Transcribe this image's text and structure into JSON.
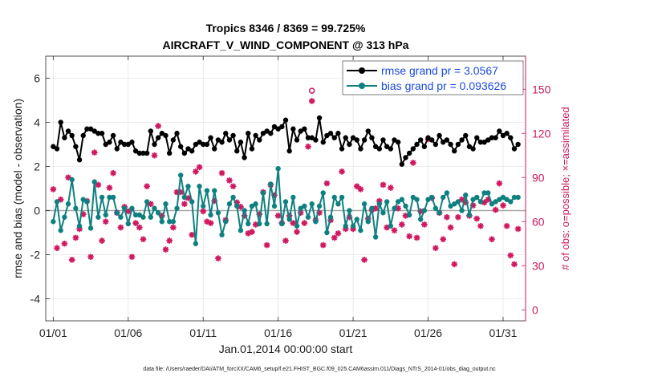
{
  "chart_data": {
    "type": "line",
    "title_line1": "Tropics 8346 / 8369 = 99.725%",
    "title_line2": "AIRCRAFT_V_WIND_COMPONENT @ 313 hPa",
    "xlabel": "Jan.01,2014 00:00:00 start",
    "ylabel_left": "rmse and bias (model - observation)",
    "ylabel_right": "# of obs: o=possible; ×=assimilated",
    "footnote": "data file: /Users/raeder/DAI/ATM_forcXX/CAM6_setup/f.e21.FHIST_BGC.f09_025.CAM6assim.011/Diags_NTrS_2014-01/obs_diag_output.nc",
    "xlim": [
      0.5,
      32.5
    ],
    "ylim_left": [
      -5,
      7
    ],
    "ylim_right": [
      -7.5,
      172.5
    ],
    "x_ticks": [
      1,
      6,
      11,
      16,
      21,
      26,
      31
    ],
    "x_tick_labels": [
      "01/01",
      "01/06",
      "01/11",
      "01/16",
      "01/21",
      "01/26",
      "01/31"
    ],
    "y_left_ticks": [
      -4,
      -2,
      0,
      2,
      4,
      6
    ],
    "y_left_tick_labels": [
      "-4",
      "-2",
      "0",
      "2",
      "4",
      "6"
    ],
    "y_right_ticks": [
      0,
      30,
      60,
      90,
      120,
      150
    ],
    "y_right_tick_labels": [
      "0",
      "30",
      "60",
      "90",
      "120",
      "150"
    ],
    "grid": true,
    "legend_position": "top-right",
    "colors": {
      "rmse": "#000000",
      "bias": "#0f8080",
      "obs": "#d01860",
      "right_axis": "#c81860",
      "legend_text": "#1a4adc",
      "grid": "#dcdcdc",
      "zero_line": "#a8a8a8"
    },
    "series": [
      {
        "name": "rmse grand pr = 3.0567",
        "axis": "left",
        "marker": "filled-circle",
        "x": [
          1.0,
          1.25,
          1.5,
          1.75,
          2.0,
          2.25,
          2.5,
          2.75,
          3.0,
          3.25,
          3.5,
          3.75,
          4.0,
          4.25,
          4.5,
          4.75,
          5.0,
          5.25,
          5.5,
          5.75,
          6.0,
          6.25,
          6.5,
          6.75,
          7.0,
          7.25,
          7.5,
          7.75,
          8.0,
          8.25,
          8.5,
          8.75,
          9.0,
          9.25,
          9.5,
          9.75,
          10.0,
          10.25,
          10.5,
          10.75,
          11.0,
          11.25,
          11.5,
          11.75,
          12.0,
          12.25,
          12.5,
          12.75,
          13.0,
          13.25,
          13.5,
          13.75,
          14.0,
          14.25,
          14.5,
          14.75,
          15.0,
          15.25,
          15.5,
          15.75,
          16.0,
          16.25,
          16.5,
          16.75,
          17.0,
          17.25,
          17.5,
          17.75,
          18.0,
          18.25,
          18.5,
          18.75,
          19.0,
          19.25,
          19.5,
          19.75,
          20.0,
          20.25,
          20.5,
          20.75,
          21.0,
          21.25,
          21.5,
          21.75,
          22.0,
          22.25,
          22.5,
          22.75,
          23.0,
          23.25,
          23.5,
          23.75,
          24.0,
          24.25,
          24.5,
          24.75,
          25.0,
          25.25,
          25.5,
          25.75,
          26.0,
          26.25,
          26.5,
          26.75,
          27.0,
          27.25,
          27.5,
          27.75,
          28.0,
          28.25,
          28.5,
          28.75,
          29.0,
          29.25,
          29.5,
          29.75,
          30.0,
          30.25,
          30.5,
          30.75,
          31.0,
          31.25,
          31.5,
          31.75,
          32.0
        ],
        "values": [
          2.9,
          2.8,
          4.0,
          3.3,
          3.6,
          3.4,
          2.9,
          2.3,
          3.4,
          3.7,
          3.7,
          3.6,
          3.5,
          3.5,
          3.0,
          3.1,
          3.4,
          2.8,
          3.1,
          3.0,
          3.0,
          3.1,
          2.7,
          2.6,
          2.6,
          2.6,
          3.6,
          3.0,
          3.3,
          3.5,
          3.4,
          2.6,
          3.2,
          3.5,
          2.9,
          2.6,
          2.8,
          2.7,
          3.0,
          3.1,
          3.0,
          3.0,
          3.3,
          2.8,
          3.2,
          3.1,
          3.5,
          3.2,
          3.4,
          2.7,
          3.1,
          2.4,
          3.5,
          2.8,
          3.4,
          3.2,
          3.5,
          3.6,
          3.5,
          3.8,
          3.7,
          3.8,
          4.1,
          2.7,
          3.7,
          3.2,
          3.6,
          3.7,
          3.3,
          3.3,
          3.2,
          4.2,
          3.1,
          3.4,
          3.5,
          3.3,
          3.5,
          2.8,
          3.3,
          3.0,
          3.3,
          3.2,
          2.8,
          3.2,
          3.6,
          3.3,
          2.9,
          2.8,
          3.2,
          2.9,
          2.8,
          3.2,
          3.1,
          2.1,
          2.4,
          2.6,
          2.8,
          3.0,
          3.2,
          2.9,
          3.3,
          3.2,
          3.0,
          3.4,
          3.1,
          3.2,
          3.0,
          2.7,
          3.0,
          3.2,
          3.4,
          2.9,
          2.8,
          3.3,
          3.1,
          3.1,
          3.2,
          3.3,
          3.3,
          3.6,
          3.4,
          3.5,
          3.3,
          2.8,
          3.0
        ]
      },
      {
        "name": "bias grand pr = 0.093626",
        "axis": "left",
        "marker": "filled-circle",
        "x": [
          1.0,
          1.25,
          1.5,
          1.75,
          2.0,
          2.25,
          2.5,
          2.75,
          3.0,
          3.25,
          3.5,
          3.75,
          4.0,
          4.25,
          4.5,
          4.75,
          5.0,
          5.25,
          5.5,
          5.75,
          6.0,
          6.25,
          6.5,
          6.75,
          7.0,
          7.25,
          7.5,
          7.75,
          8.0,
          8.25,
          8.5,
          8.75,
          9.0,
          9.25,
          9.5,
          9.75,
          10.0,
          10.25,
          10.5,
          10.75,
          11.0,
          11.25,
          11.5,
          11.75,
          12.0,
          12.25,
          12.5,
          12.75,
          13.0,
          13.25,
          13.5,
          13.75,
          14.0,
          14.25,
          14.5,
          14.75,
          15.0,
          15.25,
          15.5,
          15.75,
          16.0,
          16.25,
          16.5,
          16.75,
          17.0,
          17.25,
          17.5,
          17.75,
          18.0,
          18.25,
          18.5,
          18.75,
          19.0,
          19.25,
          19.5,
          19.75,
          20.0,
          20.25,
          20.5,
          20.75,
          21.0,
          21.25,
          21.5,
          21.75,
          22.0,
          22.25,
          22.5,
          22.75,
          23.0,
          23.25,
          23.5,
          23.75,
          24.0,
          24.25,
          24.5,
          24.75,
          25.0,
          25.25,
          25.5,
          25.75,
          26.0,
          26.25,
          26.5,
          26.75,
          27.0,
          27.25,
          27.5,
          27.75,
          28.0,
          28.25,
          28.5,
          28.75,
          29.0,
          29.25,
          29.5,
          29.75,
          30.0,
          30.25,
          30.5,
          30.75,
          31.0,
          31.25,
          31.5,
          31.75,
          32.0
        ],
        "values": [
          -0.5,
          0.4,
          -0.9,
          -0.3,
          0.3,
          1.4,
          0.1,
          -0.7,
          0.5,
          0.4,
          -0.8,
          1.3,
          -0.3,
          0.6,
          -0.2,
          0.6,
          0.6,
          -0.1,
          -0.3,
          0.1,
          -0.6,
          0.1,
          -0.2,
          -0.2,
          -0.3,
          0.4,
          -0.3,
          0.1,
          -0.1,
          -0.5,
          0.3,
          -0.5,
          -0.5,
          0.1,
          1.6,
          0.6,
          1.1,
          0.4,
          -1.5,
          1.1,
          0.2,
          0.9,
          -0.2,
          0.9,
          -0.1,
          -1.1,
          -0.5,
          0.3,
          0.6,
          0.2,
          -0.9,
          0.0,
          -0.6,
          0.2,
          0.3,
          -0.6,
          0.8,
          -0.6,
          1.2,
          0.2,
          1.9,
          -0.6,
          0.4,
          -0.4,
          0.6,
          -0.7,
          0.1,
          0.2,
          -0.3,
          0.3,
          -0.5,
          0.2,
          0.8,
          -1.0,
          -0.3,
          0.6,
          0.3,
          0.6,
          -0.7,
          0.0,
          -0.7,
          -0.4,
          -0.9,
          0.3,
          -0.5,
          0.1,
          -1.2,
          0.3,
          -0.1,
          0.4,
          -0.7,
          0.1,
          0.4,
          0.5,
          0.2,
          -0.2,
          0.6,
          0.5,
          -0.4,
          0.0,
          0.5,
          0.6,
          0.1,
          -0.1,
          0.6,
          0.8,
          0.2,
          0.3,
          0.4,
          0.0,
          0.7,
          -0.2,
          0.5,
          0.6,
          0.4,
          0.8,
          0.8,
          0.3,
          0.4,
          0.5,
          0.6,
          0.5,
          0.4,
          0.6,
          0.6
        ]
      },
      {
        "name": "obs possible",
        "axis": "right",
        "marker": "open-circle",
        "x": [
          18.25
        ],
        "values": [
          149
        ]
      },
      {
        "name": "obs assimilated",
        "axis": "right",
        "marker": "asterisk",
        "x": [
          1.0,
          1.25,
          1.5,
          1.75,
          2.0,
          2.25,
          2.5,
          2.75,
          3.0,
          3.25,
          3.5,
          3.75,
          4.0,
          4.25,
          4.5,
          4.75,
          5.0,
          5.25,
          5.5,
          5.75,
          6.0,
          6.25,
          6.5,
          6.75,
          7.0,
          7.25,
          7.5,
          7.75,
          8.0,
          8.25,
          8.5,
          8.75,
          9.0,
          9.25,
          9.5,
          9.75,
          10.0,
          10.25,
          10.5,
          10.75,
          11.0,
          11.25,
          11.5,
          11.75,
          12.0,
          12.25,
          12.5,
          12.75,
          13.0,
          13.25,
          13.5,
          13.75,
          14.0,
          14.25,
          14.5,
          14.75,
          15.0,
          15.25,
          15.5,
          15.75,
          16.0,
          16.25,
          16.5,
          16.75,
          17.0,
          17.25,
          17.5,
          17.75,
          18.0,
          18.25,
          18.5,
          18.75,
          19.0,
          19.25,
          19.5,
          19.75,
          20.0,
          20.25,
          20.5,
          20.75,
          21.0,
          21.25,
          21.5,
          21.75,
          22.0,
          22.25,
          22.5,
          22.75,
          23.0,
          23.25,
          23.5,
          23.75,
          24.0,
          24.25,
          24.5,
          24.75,
          25.0,
          25.25,
          25.5,
          25.75,
          26.0,
          26.25,
          26.5,
          26.75,
          27.0,
          27.25,
          27.5,
          27.75,
          28.0,
          28.25,
          28.5,
          28.75,
          29.0,
          29.25,
          29.5,
          29.75,
          30.0,
          30.25,
          30.5,
          30.75,
          31.0,
          31.25,
          31.5,
          31.75,
          32.0
        ],
        "values": [
          82,
          42,
          75,
          45,
          90,
          34,
          49,
          55,
          65,
          74,
          36,
          107,
          85,
          47,
          60,
          83,
          93,
          66,
          56,
          70,
          67,
          36,
          59,
          56,
          48,
          84,
          72,
          105,
          125,
          64,
          41,
          47,
          56,
          80,
          80,
          72,
          76,
          51,
          94,
          97,
          67,
          60,
          59,
          74,
          35,
          93,
          61,
          88,
          84,
          73,
          70,
          64,
          52,
          53,
          58,
          65,
          80,
          44,
          85,
          78,
          64,
          59,
          47,
          64,
          59,
          53,
          66,
          59,
          111,
          142,
          61,
          66,
          44,
          86,
          61,
          49,
          52,
          94,
          55,
          63,
          55,
          84,
          82,
          34,
          62,
          68,
          69,
          74,
          85,
          56,
          83,
          54,
          69,
          58,
          64,
          50,
          100,
          49,
          67,
          58,
          116,
          76,
          42,
          66,
          48,
          63,
          56,
          31,
          63,
          75,
          73,
          64,
          71,
          62,
          57,
          73,
          75,
          48,
          68,
          86,
          71,
          57,
          37,
          31,
          55
        ]
      }
    ]
  }
}
